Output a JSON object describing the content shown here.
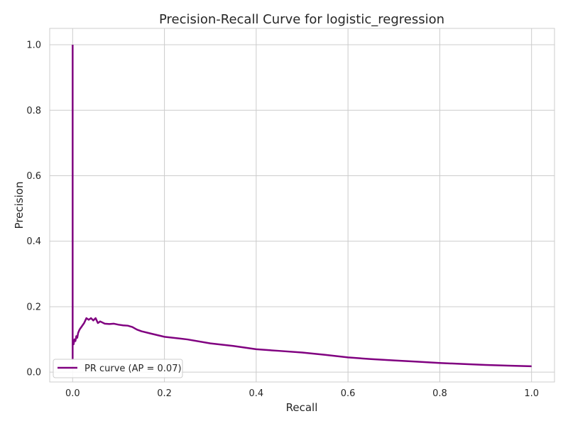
{
  "chart_data": {
    "type": "line",
    "title": "Precision-Recall Curve for logistic_regression",
    "xlabel": "Recall",
    "ylabel": "Precision",
    "xlim": [
      -0.05,
      1.05
    ],
    "ylim": [
      -0.03,
      1.05
    ],
    "xticks": [
      0.0,
      0.2,
      0.4,
      0.6,
      0.8,
      1.0
    ],
    "xtick_labels": [
      "0.0",
      "0.2",
      "0.4",
      "0.6",
      "0.8",
      "1.0"
    ],
    "yticks": [
      0.0,
      0.2,
      0.4,
      0.6,
      0.8,
      1.0
    ],
    "ytick_labels": [
      "0.0",
      "0.2",
      "0.4",
      "0.6",
      "0.8",
      "1.0"
    ],
    "grid": true,
    "legend_position": "lower-left",
    "series": [
      {
        "name": "PR curve (AP = 0.07)",
        "color": "#800080",
        "x": [
          0.0,
          0.0,
          0.0,
          0.0,
          0.002,
          0.004,
          0.006,
          0.008,
          0.01,
          0.012,
          0.015,
          0.02,
          0.025,
          0.03,
          0.035,
          0.04,
          0.045,
          0.05,
          0.055,
          0.06,
          0.07,
          0.08,
          0.09,
          0.1,
          0.11,
          0.12,
          0.13,
          0.14,
          0.15,
          0.17,
          0.2,
          0.25,
          0.3,
          0.35,
          0.4,
          0.45,
          0.5,
          0.55,
          0.6,
          0.65,
          0.7,
          0.75,
          0.8,
          0.85,
          0.9,
          0.95,
          1.0
        ],
        "y": [
          1.0,
          0.04,
          0.07,
          0.09,
          0.085,
          0.1,
          0.095,
          0.11,
          0.105,
          0.12,
          0.13,
          0.14,
          0.15,
          0.165,
          0.16,
          0.165,
          0.158,
          0.165,
          0.15,
          0.155,
          0.148,
          0.147,
          0.148,
          0.145,
          0.143,
          0.142,
          0.138,
          0.13,
          0.125,
          0.118,
          0.108,
          0.1,
          0.088,
          0.08,
          0.07,
          0.065,
          0.06,
          0.053,
          0.045,
          0.04,
          0.036,
          0.032,
          0.028,
          0.025,
          0.022,
          0.02,
          0.018
        ]
      }
    ]
  }
}
